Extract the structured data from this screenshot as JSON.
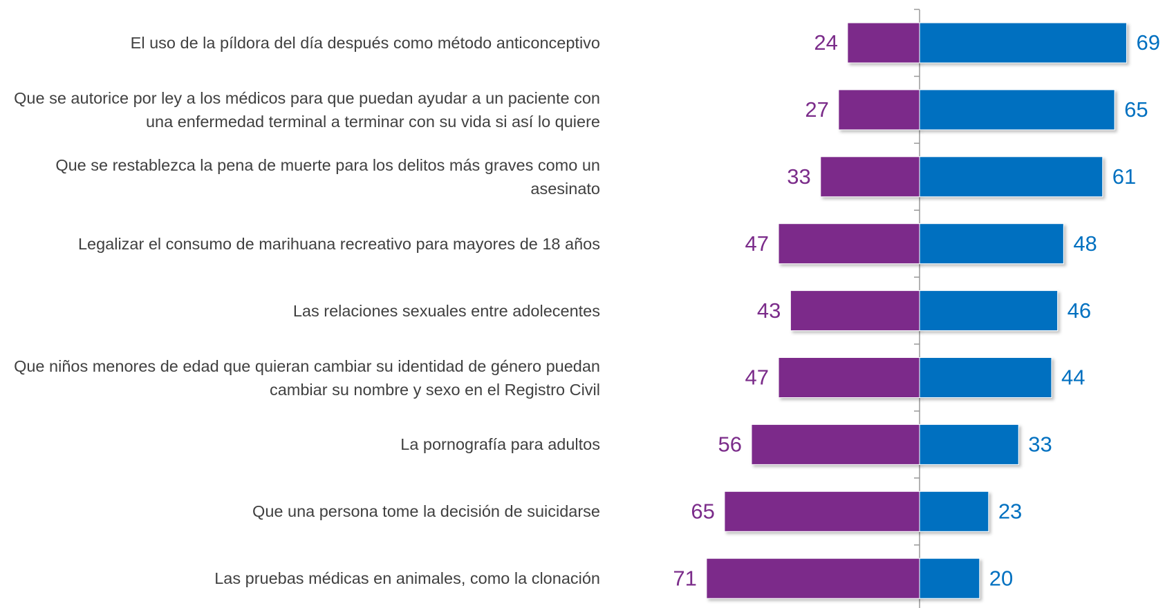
{
  "chart_data": {
    "type": "diverging_bar",
    "categories": [
      "El uso de la píldora del día después como método anticonceptivo",
      "Que se autorice por ley a los médicos para que puedan ayudar a un paciente con una enfermedad terminal a terminar con su vida si así lo quiere",
      "Que se restablezca la pena de muerte para los delitos más graves como un asesinato",
      "Legalizar el consumo de marihuana recreativo para mayores de 18 años",
      "Las relaciones sexuales entre adolecentes",
      "Que niños menores de edad que quieran cambiar su identidad de género puedan cambiar su nombre y sexo en el Registro Civil",
      "La pornografía para adultos",
      "Que una persona tome la decisión de suicidarse",
      "Las pruebas médicas en animales, como la clonación"
    ],
    "series": [
      {
        "color": "#7b2c8a",
        "values": [
          24,
          27,
          33,
          47,
          43,
          47,
          56,
          65,
          71
        ]
      },
      {
        "color": "#0070c0",
        "values": [
          69,
          65,
          61,
          48,
          46,
          44,
          33,
          23,
          20
        ]
      }
    ]
  }
}
